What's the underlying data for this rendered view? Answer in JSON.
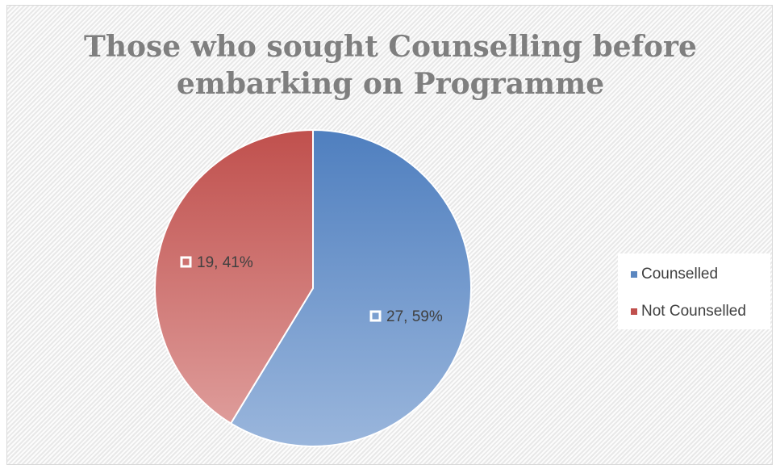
{
  "chart_data": {
    "type": "pie",
    "title_lines": [
      "Those who sought Counselling before",
      "embarking on Programme"
    ],
    "categories": [
      "Counselled",
      "Not Counselled"
    ],
    "values": [
      27,
      19
    ],
    "percent_labels": [
      "59%",
      "41%"
    ],
    "data_labels": [
      "27, 59%",
      "19, 41%"
    ],
    "colors": [
      "#5b87c0",
      "#c0504d"
    ],
    "legend_position": "right",
    "start_angle_deg": 0,
    "direction": "clockwise"
  }
}
